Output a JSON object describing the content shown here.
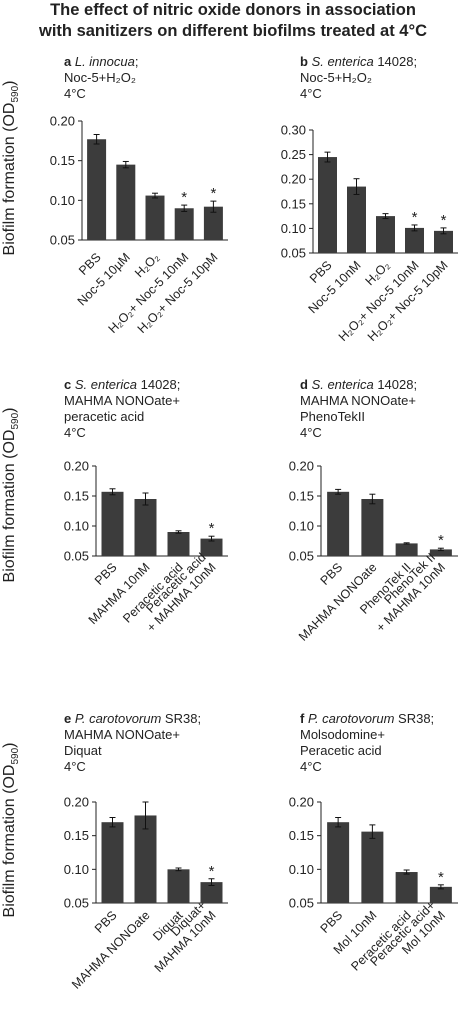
{
  "title_line1": "The effect of  nitric oxide donors in association",
  "title_line2": "with sanitizers on different biofilms treated at 4°C",
  "ylabel_main": "Biofilm formation (OD",
  "ylabel_sub": "590",
  "ylabel_close": ")",
  "colors": {
    "bar": "#3c3c3c",
    "axis": "#222222",
    "text": "#222222"
  },
  "chart_data": [
    {
      "id": "a",
      "type": "bar",
      "header": [
        [
          {
            "t": "a ",
            "style": "letter"
          },
          {
            "t": "L. innocua",
            "style": "italic"
          },
          {
            "t": ";"
          }
        ],
        [
          {
            "t": "Noc-5+H₂O₂"
          }
        ],
        [
          {
            "t": "4°C"
          }
        ]
      ],
      "categories": [
        [
          "PBS"
        ],
        [
          "Noc-5 10µM"
        ],
        [
          "H₂O₂"
        ],
        [
          "H₂O₂+ Noc-5 10nM"
        ],
        [
          "H₂O₂+ Noc-5 10pM"
        ]
      ],
      "values": [
        0.177,
        0.145,
        0.106,
        0.09,
        0.092
      ],
      "errors": [
        0.006,
        0.004,
        0.003,
        0.004,
        0.007
      ],
      "significant": [
        false,
        false,
        false,
        true,
        true
      ],
      "ylim": [
        0.05,
        0.2
      ],
      "yticks": [
        "0.05",
        "0.10",
        "0.15",
        "0.20"
      ],
      "ytick_values": [
        0.05,
        0.1,
        0.15,
        0.2
      ]
    },
    {
      "id": "b",
      "type": "bar",
      "header": [
        [
          {
            "t": "b ",
            "style": "letter"
          },
          {
            "t": "S. enterica",
            "style": "italic"
          },
          {
            "t": " 14028;"
          }
        ],
        [
          {
            "t": "Noc-5+H₂O₂"
          }
        ],
        [
          {
            "t": "4°C"
          }
        ]
      ],
      "categories": [
        [
          "PBS"
        ],
        [
          "Noc-5 10nM"
        ],
        [
          "H₂O₂"
        ],
        [
          "H₂O₂+ Noc-5 10nM"
        ],
        [
          "H₂O₂+ Noc-5 10pM"
        ]
      ],
      "values": [
        0.245,
        0.185,
        0.125,
        0.101,
        0.095
      ],
      "errors": [
        0.01,
        0.016,
        0.005,
        0.006,
        0.006
      ],
      "significant": [
        false,
        false,
        false,
        true,
        true
      ],
      "ylim": [
        0.05,
        0.3
      ],
      "yticks": [
        "0.05",
        "0.10",
        "0.15",
        "0.20",
        "0.25",
        "0.30"
      ],
      "ytick_values": [
        0.05,
        0.1,
        0.15,
        0.2,
        0.25,
        0.3
      ]
    },
    {
      "id": "c",
      "type": "bar",
      "header": [
        [
          {
            "t": "c ",
            "style": "letter"
          },
          {
            "t": "S. enterica",
            "style": "italic"
          },
          {
            "t": " 14028;"
          }
        ],
        [
          {
            "t": "MAHMA NONOate+"
          }
        ],
        [
          {
            "t": "peracetic acid"
          }
        ],
        [
          {
            "t": "4°C"
          }
        ]
      ],
      "categories": [
        [
          "PBS"
        ],
        [
          "MAHMA 10nM"
        ],
        [
          "Peracetic acid"
        ],
        [
          "Peracetic acid",
          "+ MAHMA 10nM"
        ]
      ],
      "values": [
        0.157,
        0.145,
        0.09,
        0.079
      ],
      "errors": [
        0.005,
        0.01,
        0.002,
        0.004
      ],
      "significant": [
        false,
        false,
        false,
        true
      ],
      "ylim": [
        0.05,
        0.2
      ],
      "yticks": [
        "0.05",
        "0.10",
        "0.15",
        "0.20"
      ],
      "ytick_values": [
        0.05,
        0.1,
        0.15,
        0.2
      ]
    },
    {
      "id": "d",
      "type": "bar",
      "header": [
        [
          {
            "t": "d ",
            "style": "letter"
          },
          {
            "t": "S. enterica",
            "style": "italic"
          },
          {
            "t": " 14028;"
          }
        ],
        [
          {
            "t": "MAHMA NONOate+"
          }
        ],
        [
          {
            "t": "PhenoTekII"
          }
        ],
        [
          {
            "t": "4°C"
          }
        ]
      ],
      "categories": [
        [
          "PBS"
        ],
        [
          "MAHMA NONOate"
        ],
        [
          "PhenoTek II"
        ],
        [
          "PhenoTek II",
          "+ MAHMA 10nM"
        ]
      ],
      "values": [
        0.157,
        0.145,
        0.071,
        0.061
      ],
      "errors": [
        0.004,
        0.008,
        0.001,
        0.002
      ],
      "significant": [
        false,
        false,
        false,
        true
      ],
      "ylim": [
        0.05,
        0.2
      ],
      "yticks": [
        "0.05",
        "0.10",
        "0.15",
        "0.20"
      ],
      "ytick_values": [
        0.05,
        0.1,
        0.15,
        0.2
      ]
    },
    {
      "id": "e",
      "type": "bar",
      "header": [
        [
          {
            "t": "e ",
            "style": "letter"
          },
          {
            "t": "P. carotovorum",
            "style": "italic"
          },
          {
            "t": " SR38;"
          }
        ],
        [
          {
            "t": "MAHMA NONOate+"
          }
        ],
        [
          {
            "t": "Diquat"
          }
        ],
        [
          {
            "t": "4°C"
          }
        ]
      ],
      "categories": [
        [
          "PBS"
        ],
        [
          "MAHMA NONOate"
        ],
        [
          "Diquat"
        ],
        [
          "Diquat+",
          "MAHMA 10nM"
        ]
      ],
      "values": [
        0.17,
        0.18,
        0.1,
        0.081
      ],
      "errors": [
        0.007,
        0.02,
        0.002,
        0.005
      ],
      "significant": [
        false,
        false,
        false,
        true
      ],
      "ylim": [
        0.05,
        0.2
      ],
      "yticks": [
        "0.05",
        "0.10",
        "0.15",
        "0.20"
      ],
      "ytick_values": [
        0.05,
        0.1,
        0.15,
        0.2
      ]
    },
    {
      "id": "f",
      "type": "bar",
      "header": [
        [
          {
            "t": "f ",
            "style": "letter"
          },
          {
            "t": "P. carotovorum",
            "style": "italic"
          },
          {
            "t": " SR38;"
          }
        ],
        [
          {
            "t": "Molsodomine+"
          }
        ],
        [
          {
            "t": "Peracetic acid"
          }
        ],
        [
          {
            "t": "4°C"
          }
        ]
      ],
      "categories": [
        [
          "PBS"
        ],
        [
          "Mol 10nM"
        ],
        [
          "Peracetic acid"
        ],
        [
          "Peracetic acid+",
          "Mol 10nM"
        ]
      ],
      "values": [
        0.17,
        0.156,
        0.096,
        0.074
      ],
      "errors": [
        0.007,
        0.01,
        0.003,
        0.003
      ],
      "significant": [
        false,
        false,
        false,
        true
      ],
      "ylim": [
        0.05,
        0.2
      ],
      "yticks": [
        "0.05",
        "0.10",
        "0.15",
        "0.20"
      ],
      "ytick_values": [
        0.05,
        0.1,
        0.15,
        0.2
      ]
    }
  ]
}
